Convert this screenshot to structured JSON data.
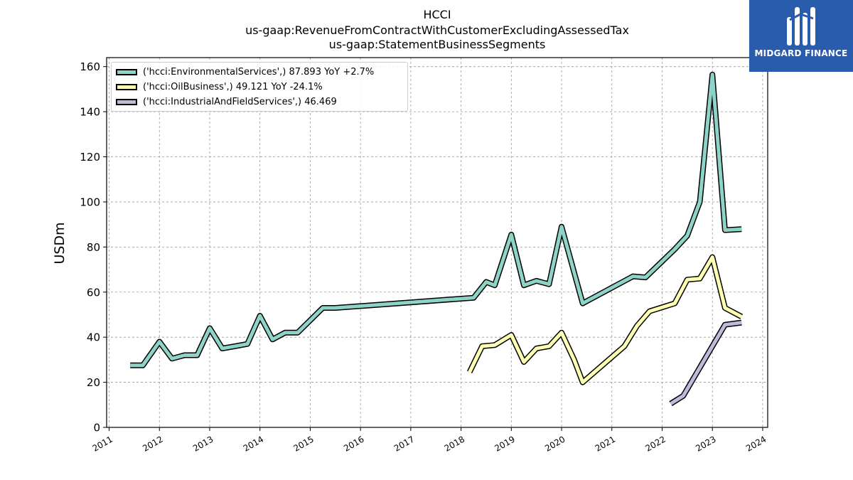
{
  "title_lines": [
    "HCCI",
    "us-gaap:RevenueFromContractWithCustomerExcludingAssessedTax",
    "us-gaap:StatementBusinessSegments"
  ],
  "logo": {
    "text": "MIDGARD FINANCE",
    "color": "#2a5cad"
  },
  "chart_data": {
    "type": "line",
    "ylabel": "USDm",
    "ylim": [
      0,
      164
    ],
    "yticks": [
      0,
      20,
      40,
      60,
      80,
      100,
      120,
      140,
      160
    ],
    "xlim": [
      2010.95,
      2024.1
    ],
    "xticks": [
      2011,
      2012,
      2013,
      2014,
      2015,
      2016,
      2017,
      2018,
      2019,
      2020,
      2021,
      2022,
      2023,
      2024
    ],
    "grid": true,
    "legend_placement": "top-left",
    "series": [
      {
        "name": "('hcci:EnvironmentalServices',) 87.893 YoY +2.7%",
        "color": "#8dd3c7",
        "x": [
          2011.42,
          2011.67,
          2012.0,
          2012.25,
          2012.5,
          2012.75,
          2013.0,
          2013.25,
          2013.5,
          2013.75,
          2014.0,
          2014.25,
          2014.5,
          2014.75,
          2015.25,
          2015.5,
          2018.25,
          2018.5,
          2018.67,
          2019.0,
          2019.25,
          2019.5,
          2019.75,
          2020.0,
          2020.42,
          2021.42,
          2021.67,
          2022.25,
          2022.5,
          2022.75,
          2023.0,
          2023.25,
          2023.58
        ],
        "y": [
          27.5,
          27.5,
          38,
          30.5,
          32,
          32,
          44,
          35,
          36,
          37,
          49.5,
          39,
          42,
          42,
          53,
          53,
          57.5,
          64.5,
          63,
          85.5,
          63,
          65,
          63.5,
          89,
          55,
          67,
          66.5,
          79,
          85,
          100,
          156.5,
          87.5,
          87.9
        ]
      },
      {
        "name": "('hcci:OilBusiness',) 49.121 YoY -24.1%",
        "color": "#ffffb3",
        "x": [
          2018.17,
          2018.42,
          2018.67,
          2019.0,
          2019.25,
          2019.5,
          2019.75,
          2020.0,
          2020.25,
          2020.42,
          2021.25,
          2021.5,
          2021.75,
          2022.25,
          2022.5,
          2022.75,
          2023.0,
          2023.25,
          2023.58
        ],
        "y": [
          24.5,
          36,
          36.5,
          41,
          29,
          35,
          36,
          42,
          30,
          20,
          36,
          45,
          51.5,
          55,
          65.5,
          66,
          75.5,
          53,
          49.1
        ]
      },
      {
        "name": "('hcci:IndustrialAndFieldServices',) 46.469",
        "color": "#bebada",
        "x": [
          2022.17,
          2022.42,
          2023.25,
          2023.58
        ],
        "y": [
          10.5,
          14,
          45.5,
          46.5
        ]
      }
    ]
  }
}
